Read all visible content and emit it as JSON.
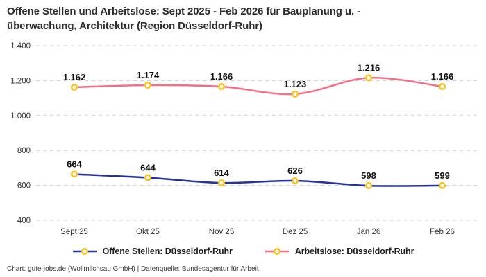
{
  "title": {
    "line1": "Offene Stellen und Arbeitslose: Sept 2025 - Feb 2026 für Bauplanung u. -",
    "line2": "überwachung, Architektur (Region Düsseldorf-Ruhr)"
  },
  "footer": "Chart: gute-jobs.de (Wollmilchsau GmbH) | Datenquelle: Bundesagentur für Arbeit",
  "colors": {
    "title_text": "#2d2d2d",
    "grid": "#cccccc",
    "tick_text": "#333333",
    "data_label_text": "#141414",
    "marker_stroke": "#f9c322",
    "marker_fill": "#ffffff",
    "series_open_positions": "#24349e",
    "series_unemployed": "#f76e86"
  },
  "chart_data": {
    "type": "line",
    "title": "Offene Stellen und Arbeitslose: Sept 2025 - Feb 2026 für Bauplanung u. -überwachung, Architektur (Region Düsseldorf-Ruhr)",
    "categories": [
      "Sept 25",
      "Okt 25",
      "Nov 25",
      "Dez 25",
      "Jan 26",
      "Feb 26"
    ],
    "series": [
      {
        "name": "Offene Stellen: Düsseldorf-Ruhr",
        "color": "#24349e",
        "values": [
          664,
          644,
          614,
          626,
          598,
          599
        ],
        "labels": [
          "664",
          "644",
          "614",
          "626",
          "598",
          "599"
        ]
      },
      {
        "name": "Arbeitslose: Düsseldorf-Ruhr",
        "color": "#f76e86",
        "values": [
          1162,
          1174,
          1166,
          1123,
          1216,
          1166
        ],
        "labels": [
          "1.162",
          "1.174",
          "1.166",
          "1.123",
          "1.216",
          "1.166"
        ]
      }
    ],
    "xlabel": "",
    "ylabel": "",
    "ylim": [
      400,
      1400
    ],
    "yticks": [
      400,
      600,
      800,
      1000,
      1200,
      1400
    ],
    "ytick_labels": [
      "400",
      "600",
      "800",
      "1.000",
      "1.200",
      "1.400"
    ],
    "grid": true,
    "grid_style": "dashed",
    "legend_position": "bottom",
    "marker_shape": "ring"
  }
}
